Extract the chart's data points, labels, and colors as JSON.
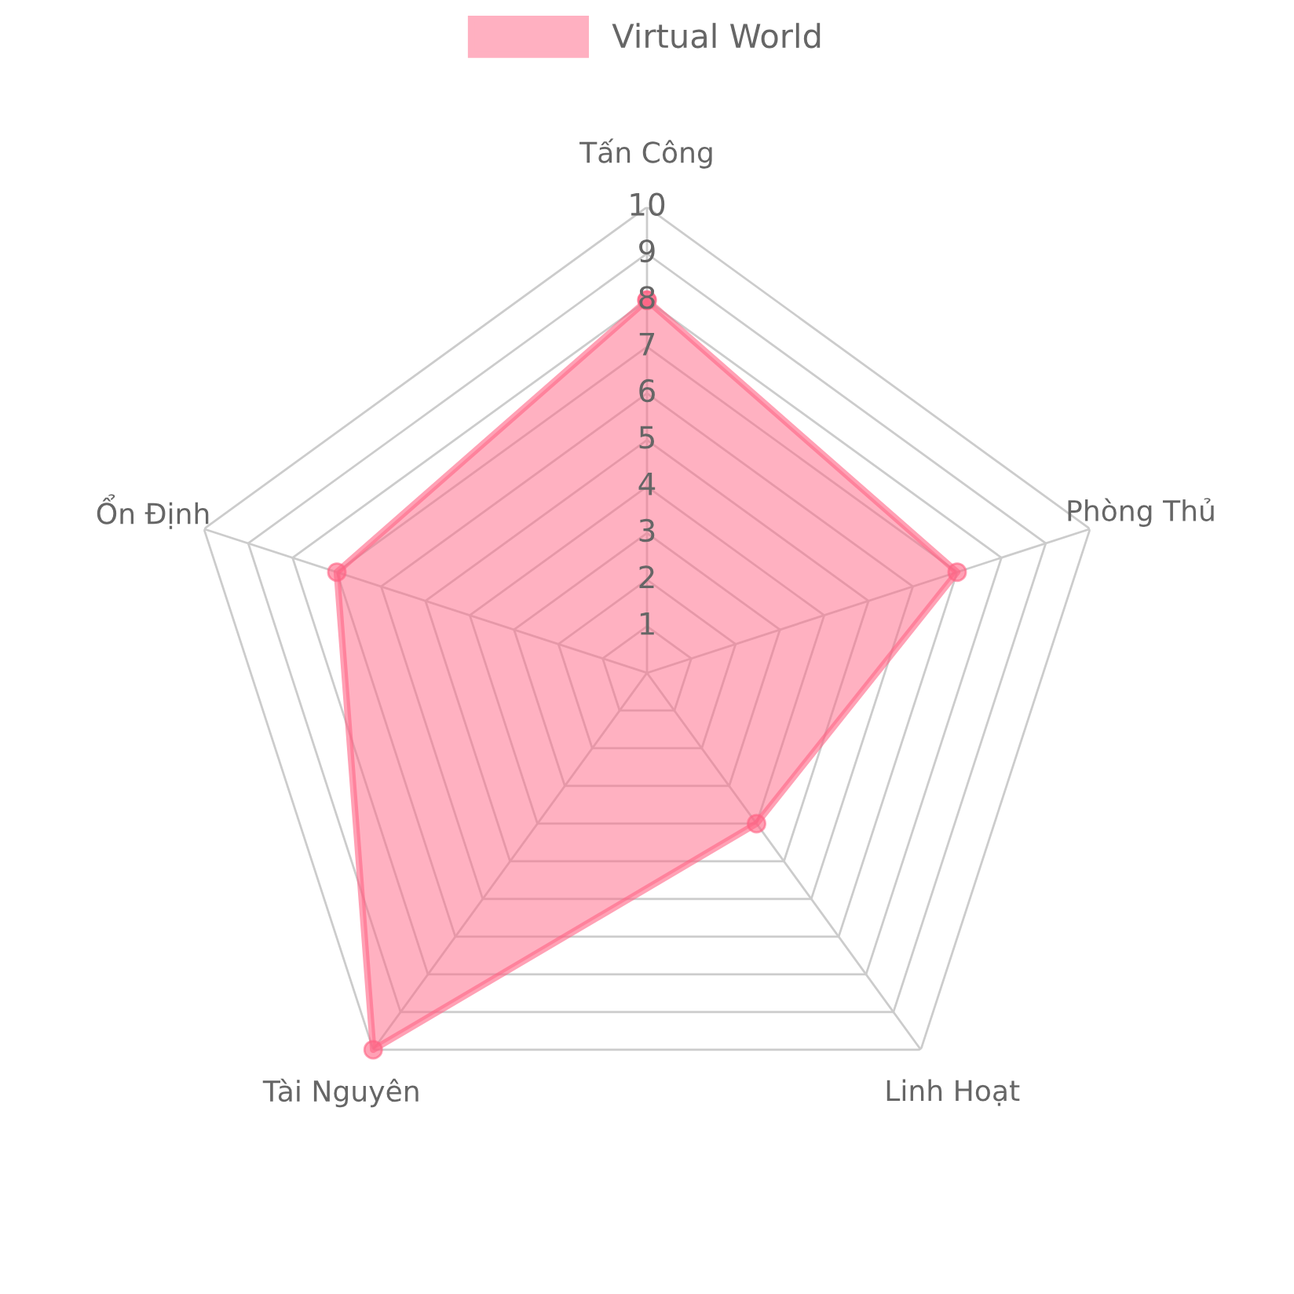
{
  "chart_data": {
    "type": "radar",
    "categories": [
      "Tấn Công",
      "Phòng Thủ",
      "Linh Hoạt",
      "Tài Nguyên",
      "Ổn Định"
    ],
    "series": [
      {
        "name": "Virtual World",
        "color": "#ff6384",
        "values": [
          8,
          7,
          4,
          10,
          7
        ]
      }
    ],
    "ylim": [
      0,
      10
    ],
    "yticks": [
      1,
      2,
      3,
      4,
      5,
      6,
      7,
      8,
      9,
      10
    ],
    "grid": true,
    "legend": "top",
    "marker": "circle"
  }
}
